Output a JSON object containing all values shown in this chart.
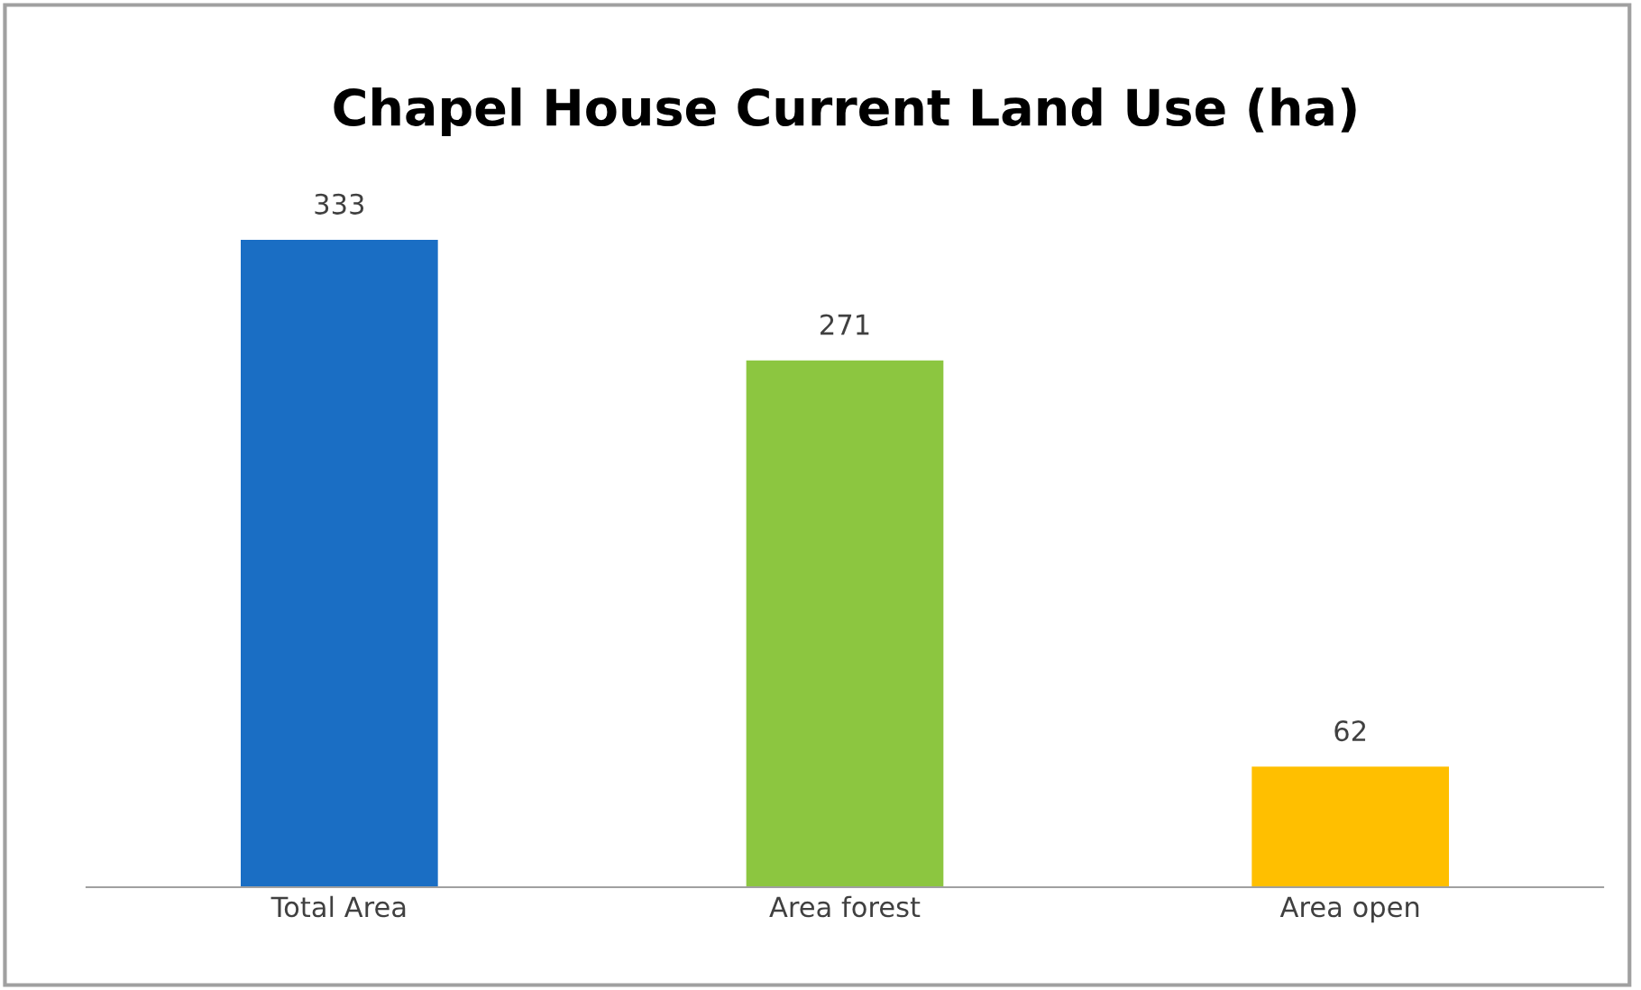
{
  "chart_data": {
    "type": "bar",
    "title": "Chapel House Current Land Use (ha)",
    "categories": [
      "Total Area",
      "Area forest",
      "Area open"
    ],
    "values": [
      333,
      271,
      62
    ],
    "colors": [
      "#1a6ec4",
      "#8cc640",
      "#ffbf00"
    ],
    "data_labels": true
  }
}
